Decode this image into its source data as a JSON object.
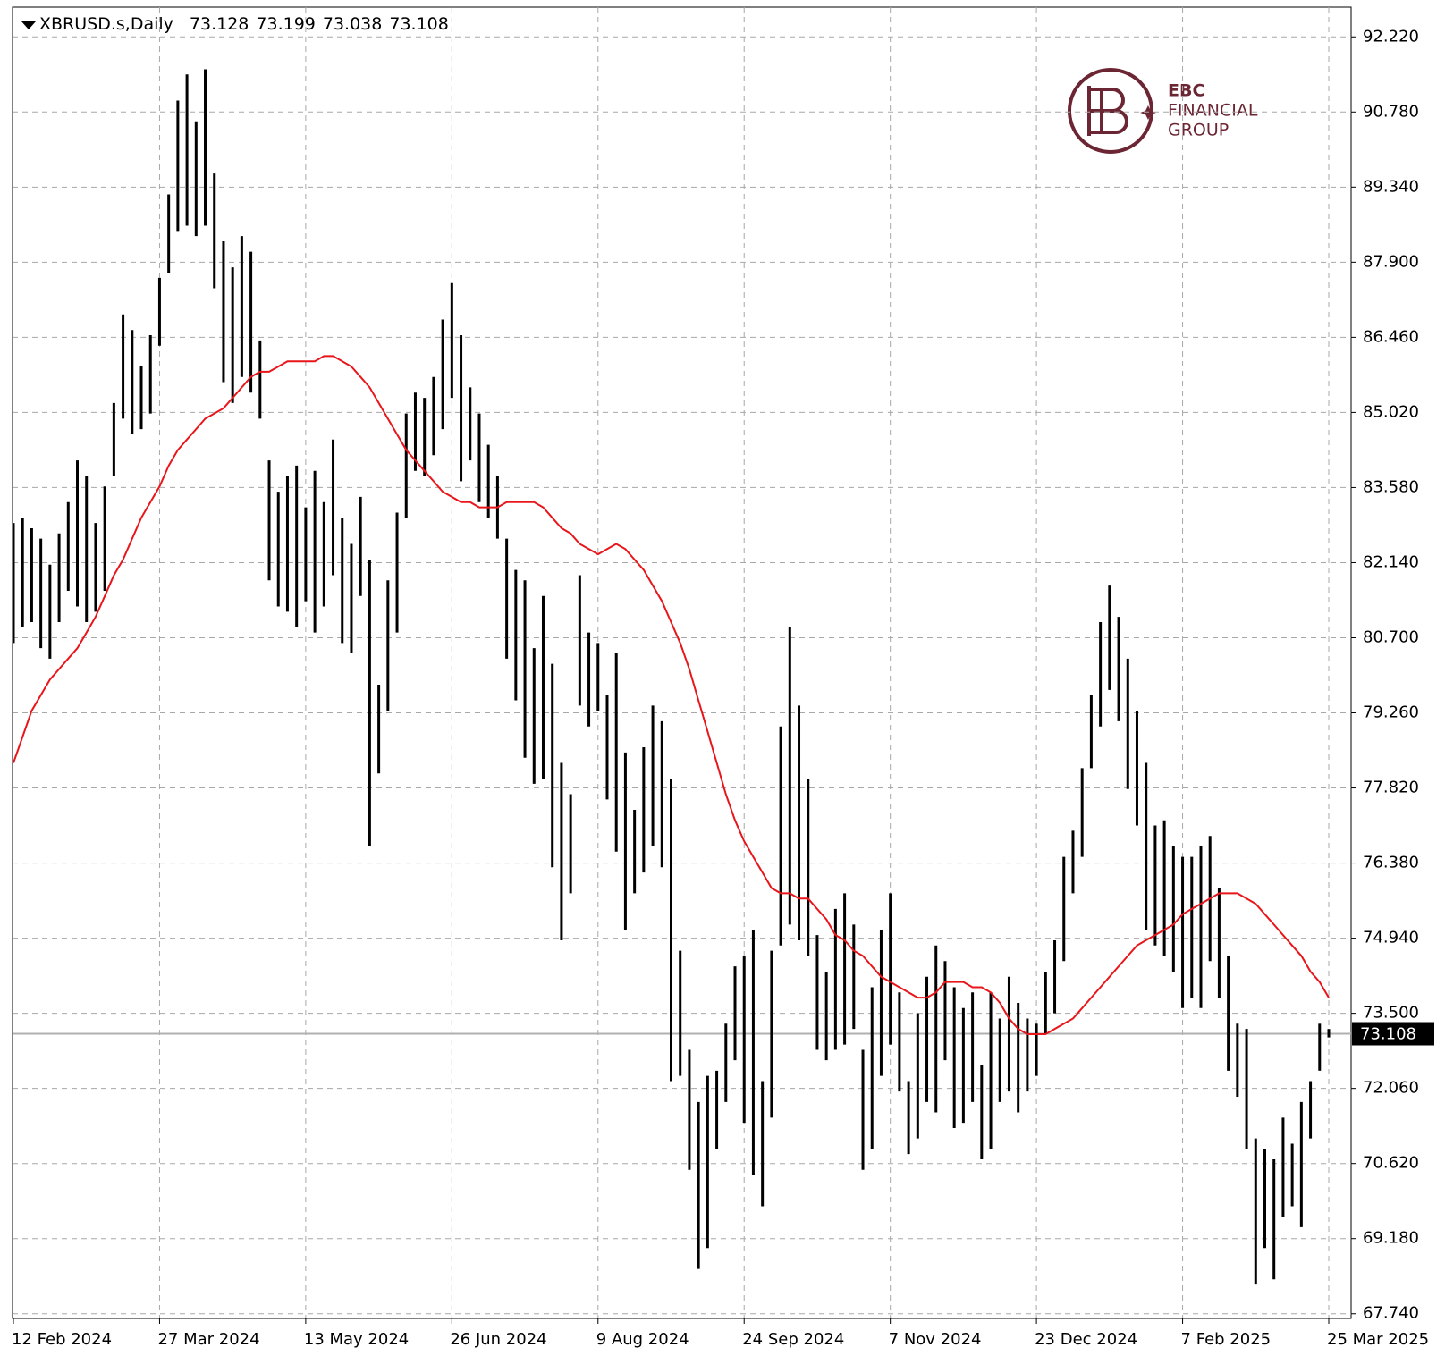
{
  "chart_data": {
    "type": "ohlc",
    "symbol": "XBRUSD.s,Daily",
    "last_open": 73.128,
    "last_close": 73.108,
    "high": [
      82.9,
      83.0,
      82.8,
      82.6,
      82.1,
      82.7,
      83.3,
      84.1,
      83.8,
      82.9,
      83.6,
      85.2,
      86.9,
      86.6,
      85.9,
      86.5,
      87.6,
      89.2,
      91.0,
      91.5,
      90.6,
      91.6,
      89.6,
      88.3,
      87.8,
      88.4,
      88.1,
      86.4,
      84.1,
      83.5,
      83.8,
      84.0,
      83.2,
      83.9,
      83.3,
      84.5,
      83.0,
      82.5,
      83.4,
      82.2,
      79.8,
      81.8,
      83.1,
      85.0,
      85.4,
      85.3,
      85.7,
      86.8,
      87.5,
      86.5,
      85.5,
      85.0,
      84.4,
      83.8,
      82.6,
      82.0,
      81.8,
      80.5,
      81.5,
      80.2,
      78.3,
      77.7,
      81.9,
      80.8,
      80.6,
      79.6,
      80.4,
      78.5,
      77.4,
      78.6,
      79.4,
      79.1,
      78.0,
      74.7,
      72.8,
      71.8,
      72.3,
      72.4,
      73.3,
      74.4,
      74.6,
      75.1,
      72.2,
      74.7,
      79.0,
      80.9,
      79.4,
      78.0,
      75.0,
      74.3,
      75.5,
      75.8,
      75.2,
      72.8,
      74.0,
      75.1,
      75.8,
      73.9,
      72.2,
      73.5,
      74.2,
      74.8,
      74.5,
      74.0,
      73.6,
      73.9,
      72.5,
      73.9,
      73.4,
      74.2,
      73.7,
      73.4,
      73.3,
      74.3,
      74.9,
      76.5,
      77.0,
      78.2,
      79.6,
      81.0,
      81.7,
      81.1,
      80.3,
      79.3,
      78.3,
      77.1,
      77.2,
      76.7,
      76.5,
      76.5,
      76.7,
      76.9,
      75.9,
      74.6,
      73.3,
      73.2,
      71.1,
      70.9,
      70.7,
      71.5,
      71.0,
      71.8,
      72.2,
      73.3,
      73.199
    ],
    "low": [
      80.6,
      80.9,
      81.0,
      80.5,
      80.3,
      81.0,
      81.6,
      81.3,
      81.0,
      81.2,
      81.6,
      83.8,
      84.9,
      84.6,
      84.7,
      85.0,
      86.3,
      87.7,
      88.5,
      88.6,
      88.4,
      88.6,
      87.4,
      85.6,
      85.2,
      85.7,
      85.4,
      84.9,
      81.8,
      81.3,
      81.2,
      80.9,
      81.4,
      80.8,
      81.3,
      81.9,
      80.6,
      80.4,
      81.5,
      76.7,
      78.1,
      79.3,
      80.8,
      83.0,
      83.9,
      83.8,
      84.2,
      84.7,
      85.3,
      83.7,
      84.1,
      83.3,
      83.0,
      82.6,
      80.3,
      79.5,
      78.4,
      77.9,
      78.0,
      76.3,
      74.9,
      75.8,
      79.4,
      79.0,
      79.3,
      77.6,
      76.6,
      75.1,
      75.8,
      76.2,
      76.7,
      76.3,
      72.2,
      72.3,
      70.5,
      68.6,
      69.0,
      70.9,
      71.8,
      72.6,
      71.4,
      70.4,
      69.8,
      71.5,
      74.8,
      75.2,
      74.9,
      74.6,
      72.8,
      72.6,
      72.8,
      72.9,
      73.2,
      70.5,
      70.9,
      72.3,
      72.9,
      72.0,
      70.8,
      71.1,
      71.8,
      71.6,
      72.6,
      71.3,
      71.4,
      71.8,
      70.7,
      70.9,
      71.8,
      72.0,
      71.6,
      72.0,
      72.3,
      73.1,
      73.5,
      74.5,
      75.8,
      76.5,
      78.2,
      79.0,
      79.7,
      79.1,
      77.8,
      77.1,
      75.1,
      74.8,
      74.6,
      74.3,
      73.6,
      73.8,
      73.6,
      74.5,
      73.8,
      72.4,
      71.9,
      70.9,
      68.3,
      69.0,
      68.4,
      69.6,
      69.8,
      69.4,
      71.1,
      72.4,
      73.038
    ],
    "ma": [
      78.3,
      78.8,
      79.3,
      79.6,
      79.9,
      80.1,
      80.3,
      80.5,
      80.8,
      81.1,
      81.5,
      81.9,
      82.2,
      82.6,
      83.0,
      83.3,
      83.6,
      84.0,
      84.3,
      84.5,
      84.7,
      84.9,
      85.0,
      85.1,
      85.3,
      85.5,
      85.7,
      85.8,
      85.8,
      85.9,
      86.0,
      86.0,
      86.0,
      86.0,
      86.1,
      86.1,
      86.0,
      85.9,
      85.7,
      85.5,
      85.2,
      84.9,
      84.6,
      84.3,
      84.1,
      83.9,
      83.7,
      83.5,
      83.4,
      83.3,
      83.3,
      83.2,
      83.2,
      83.2,
      83.3,
      83.3,
      83.3,
      83.3,
      83.2,
      83.0,
      82.8,
      82.7,
      82.5,
      82.4,
      82.3,
      82.4,
      82.5,
      82.4,
      82.2,
      82.0,
      81.7,
      81.4,
      81.0,
      80.6,
      80.1,
      79.5,
      78.9,
      78.3,
      77.7,
      77.2,
      76.8,
      76.5,
      76.2,
      75.9,
      75.8,
      75.8,
      75.7,
      75.7,
      75.5,
      75.3,
      75.0,
      74.9,
      74.7,
      74.6,
      74.4,
      74.2,
      74.1,
      74.0,
      73.9,
      73.8,
      73.8,
      73.9,
      74.1,
      74.1,
      74.1,
      74.0,
      74.0,
      73.9,
      73.7,
      73.4,
      73.2,
      73.1,
      73.1,
      73.1,
      73.2,
      73.3,
      73.4,
      73.6,
      73.8,
      74.0,
      74.2,
      74.4,
      74.6,
      74.8,
      74.9,
      75.0,
      75.1,
      75.2,
      75.4,
      75.5,
      75.6,
      75.7,
      75.8,
      75.8,
      75.8,
      75.7,
      75.6,
      75.4,
      75.2,
      75.0,
      74.8,
      74.6,
      74.3,
      74.1,
      73.8
    ],
    "bar_color": "#000000",
    "ma_color": "#e8161b",
    "grid": true,
    "ylim": [
      67.65,
      92.79
    ],
    "yticks": [
      {
        "value": 92.22,
        "label": "92.220"
      },
      {
        "value": 90.78,
        "label": "90.780"
      },
      {
        "value": 89.34,
        "label": "89.340"
      },
      {
        "value": 87.9,
        "label": "87.900"
      },
      {
        "value": 86.46,
        "label": "86.460"
      },
      {
        "value": 85.02,
        "label": "85.020"
      },
      {
        "value": 83.58,
        "label": "83.580"
      },
      {
        "value": 82.14,
        "label": "82.140"
      },
      {
        "value": 80.7,
        "label": "80.700"
      },
      {
        "value": 79.26,
        "label": "79.260"
      },
      {
        "value": 77.82,
        "label": "77.820"
      },
      {
        "value": 76.38,
        "label": "76.380"
      },
      {
        "value": 74.94,
        "label": "74.940"
      },
      {
        "value": 73.5,
        "label": "73.500"
      },
      {
        "value": 72.06,
        "label": "72.060"
      },
      {
        "value": 70.62,
        "label": "70.620"
      },
      {
        "value": 69.18,
        "label": "69.180"
      },
      {
        "value": 67.74,
        "label": "67.740"
      }
    ],
    "xticks": [
      {
        "value": 0,
        "label": "12 Feb 2024"
      },
      {
        "value": 16,
        "label": "27 Mar 2024"
      },
      {
        "value": 32,
        "label": "13 May 2024"
      },
      {
        "value": 48,
        "label": "26 Jun 2024"
      },
      {
        "value": 64,
        "label": "9 Aug 2024"
      },
      {
        "value": 80,
        "label": "24 Sep 2024"
      },
      {
        "value": 96,
        "label": "7 Nov 2024"
      },
      {
        "value": 112,
        "label": "23 Dec 2024"
      },
      {
        "value": 128,
        "label": "7 Feb 2025"
      },
      {
        "value": 144,
        "label": "25 Mar 2025"
      }
    ]
  },
  "logo": [
    "EBC",
    "FINANCIAL",
    "GROUP"
  ]
}
